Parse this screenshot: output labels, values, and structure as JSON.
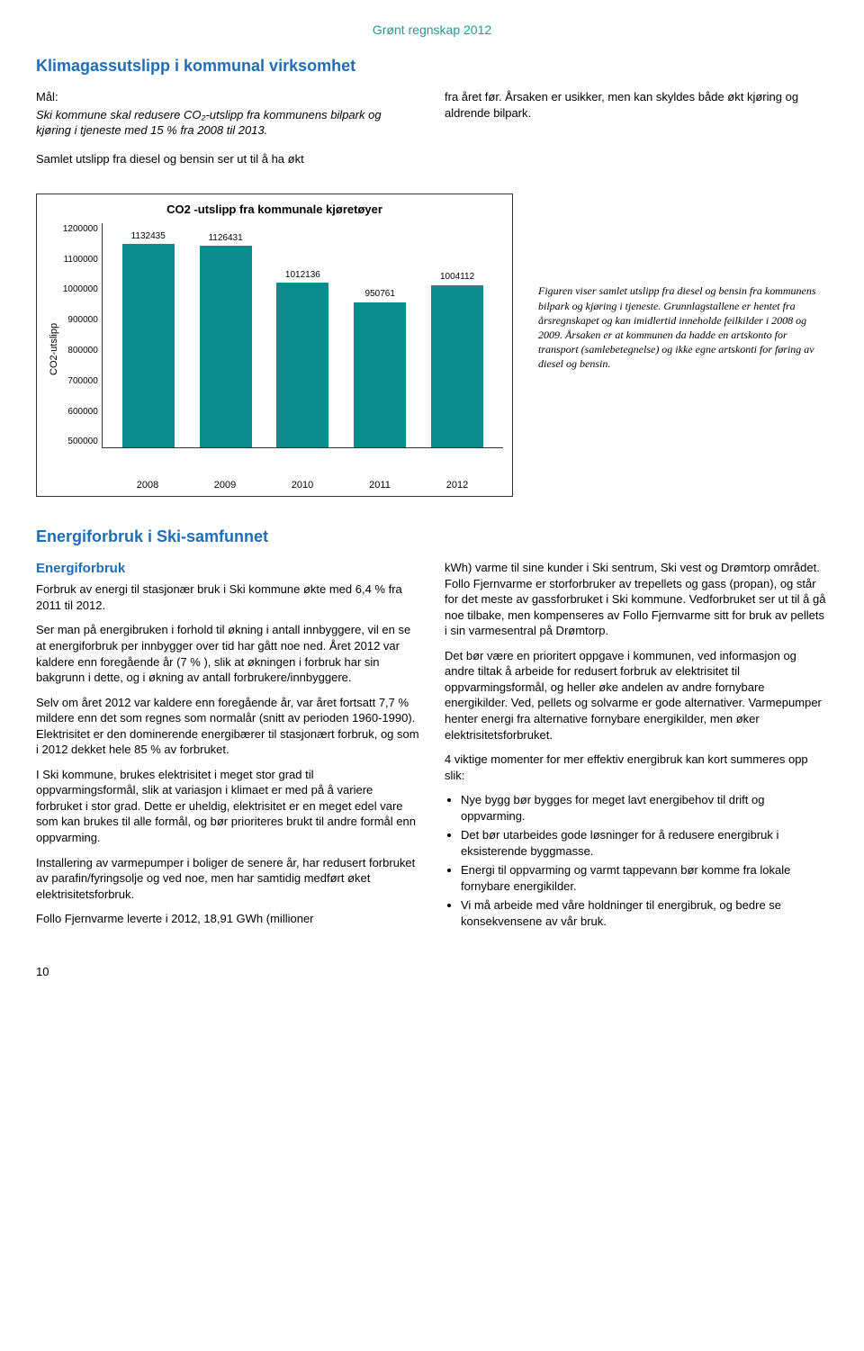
{
  "header": {
    "label": "Grønt regnskap 2012"
  },
  "section1": {
    "title": "Klimagassutslipp i kommunal virksomhet",
    "goal_label": "Mål:",
    "goal_text": "Ski kommune skal redusere CO₂-utslipp fra kommunens bilpark og kjøring i tjeneste med 15 % fra 2008 til 2013.",
    "p_left": "Samlet utslipp fra diesel og bensin ser ut til å ha økt",
    "p_right": "fra året før. Årsaken er usikker, men kan skyldes både økt kjøring og aldrende bilpark."
  },
  "chart": {
    "type": "bar",
    "title": "CO2  -utslipp fra kommunale kjøretøyer",
    "ylabel": "CO2-utslipp",
    "ylim_min": 500000,
    "ylim_max": 1200000,
    "ytick_step": 100000,
    "yticks": [
      "1200000",
      "1100000",
      "1000000",
      "900000",
      "800000",
      "700000",
      "600000",
      "500000"
    ],
    "categories": [
      "2008",
      "2009",
      "2010",
      "2011",
      "2012"
    ],
    "values": [
      1132435,
      1126431,
      1012136,
      950761,
      1004112
    ],
    "bar_color": "#0b8b8b",
    "background_color": "#ffffff",
    "border_color": "#333333"
  },
  "chart_caption": "Figuren viser samlet utslipp fra diesel og bensin fra kommunens bilpark og kjøring i tjeneste. Grunnlagstallene er hentet fra årsregnskapet og kan imidlertid inneholde feilkilder i 2008 og 2009. Årsaken er at kommunen da hadde en artskonto for transport (samlebetegnelse) og ikke egne artskonti for føring av diesel og bensin.",
  "section2": {
    "title": "Energiforbruk i Ski-samfunnet",
    "subtitle": "Energiforbruk",
    "left": {
      "p1": "Forbruk av energi til stasjonær bruk i Ski kommune økte med 6,4 % fra 2011 til 2012.",
      "p2": "Ser man på energibruken i forhold til økning i antall innbyggere, vil en se at energiforbruk per innbygger over tid har gått noe ned. Året 2012 var kaldere enn foregående år (7 % ), slik at økningen i forbruk har sin bakgrunn i dette, og i økning av antall forbrukere/innbyggere.",
      "p3": "Selv om året 2012 var kaldere enn foregående år, var året fortsatt 7,7 % mildere enn det som regnes som normalår (snitt av perioden 1960-1990). Elektrisitet er den dominerende energibærer til stasjonært forbruk, og som i 2012 dekket hele 85 % av forbruket.",
      "p4": " I Ski kommune, brukes elektrisitet i meget stor grad til oppvarmingsformål, slik at variasjon i klimaet er med på å variere forbruket i stor grad. Dette er uheldig, elektrisitet er en meget edel vare som kan brukes til alle formål, og bør prioriteres brukt til andre formål enn oppvarming.",
      "p5": "Installering av varmepumper i boliger de senere år, har redusert forbruket av parafin/fyringsolje og ved noe, men har samtidig medført øket elektrisitetsforbruk.",
      "p6": "Follo Fjernvarme leverte i 2012, 18,91 GWh (millioner"
    },
    "right": {
      "p1": "kWh) varme til sine kunder i Ski sentrum, Ski vest og Drømtorp området. Follo Fjernvarme er storforbruker av trepellets og gass (propan), og står for det meste av gassforbruket i Ski kommune. Vedforbruket ser ut til å gå noe tilbake, men kompenseres av Follo Fjernvarme sitt for bruk av pellets i sin varmesentral på Drømtorp.",
      "p2": "Det bør være en prioritert oppgave i kommunen, ved informasjon og andre tiltak å arbeide for redusert forbruk av elektrisitet til oppvarmingsformål, og heller øke andelen av andre fornybare energikilder. Ved, pellets og solvarme er gode alternativer. Varmepumper henter energi fra alternative fornybare energikilder, men øker elektrisitetsforbruket.",
      "p3_intro": "4 viktige momenter for mer effektiv energibruk kan kort summeres opp slik:",
      "bullets": [
        "Nye bygg bør bygges for meget lavt energibehov til drift og oppvarming.",
        "Det bør utarbeides gode løsninger for å redusere energibruk i eksisterende byggmasse.",
        "Energi til oppvarming og varmt tappevann bør komme fra lokale fornybare energikilder.",
        "Vi må arbeide med våre holdninger til energibruk, og bedre se konsekvensene av vår bruk."
      ]
    }
  },
  "page_number": "10"
}
